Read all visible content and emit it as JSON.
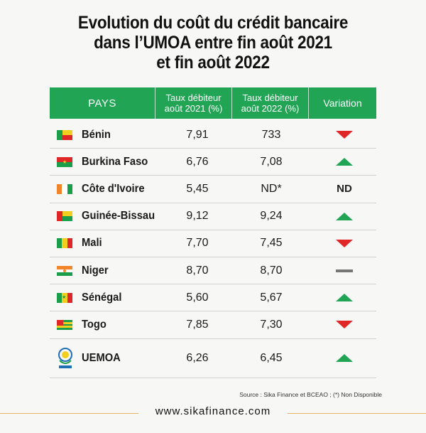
{
  "title": {
    "line1": "Evolution du coût du crédit bancaire",
    "line2": "dans l’UMOA entre fin août 2021",
    "line3": "et fin août 2022"
  },
  "headers": {
    "pays": "PAYS",
    "t2021_l1": "Taux débiteur",
    "t2021_l2": "août 2021 (%)",
    "t2022_l1": "Taux débiteur",
    "t2022_l2": "août 2022 (%)",
    "variation": "Variation"
  },
  "colors": {
    "header_green": "#22a455",
    "up_green": "#22a455",
    "down_red": "#e02727",
    "flat_gray": "#777777"
  },
  "chart_data": {
    "type": "table",
    "columns": [
      "PAYS",
      "Taux débiteur août 2021 (%)",
      "Taux débiteur août 2022 (%)",
      "Variation"
    ],
    "rows": [
      {
        "country": "Bénin",
        "v2021": "7,91",
        "v2022": "733",
        "variation": "down"
      },
      {
        "country": "Burkina Faso",
        "v2021": "6,76",
        "v2022": "7,08",
        "variation": "up"
      },
      {
        "country": "Côte d'Ivoire",
        "v2021": "5,45",
        "v2022": "ND*",
        "variation": "ND"
      },
      {
        "country": "Guinée-Bissau",
        "v2021": "9,12",
        "v2022": "9,24",
        "variation": "up"
      },
      {
        "country": "Mali",
        "v2021": "7,70",
        "v2022": "7,45",
        "variation": "down"
      },
      {
        "country": "Niger",
        "v2021": "8,70",
        "v2022": "8,70",
        "variation": "flat"
      },
      {
        "country": "Sénégal",
        "v2021": "5,60",
        "v2022": "5,67",
        "variation": "up"
      },
      {
        "country": "Togo",
        "v2021": "7,85",
        "v2022": "7,30",
        "variation": "down"
      },
      {
        "country": "UEMOA",
        "v2021": "6,26",
        "v2022": "6,45",
        "variation": "up"
      }
    ]
  },
  "source": "Source : Sika Finance et BCEAO ; (*) Non Disponible",
  "website": "www.sikafinance.com"
}
